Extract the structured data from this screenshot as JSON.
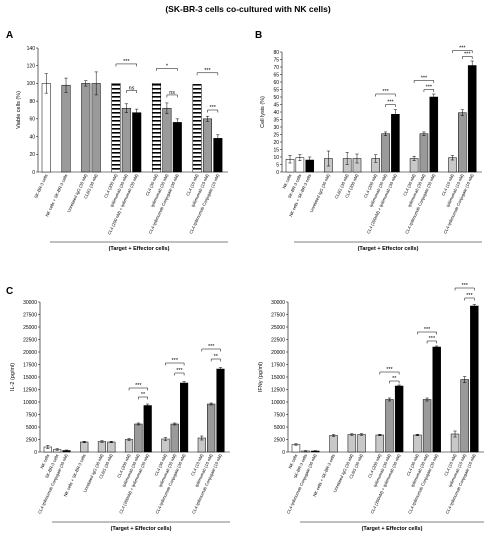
{
  "figure_title": "(SK-BR-3 cells co-cultured with NK cells)",
  "colors": {
    "white": "#ffffff",
    "light_gray": "#c8c8c8",
    "gray": "#9a9a9a",
    "dark_gray": "#7a7a7a",
    "black": "#000000"
  },
  "chart_data": [
    {
      "panel": "A",
      "type": "bar",
      "ylabel": "Viable cells (%)",
      "xlabel": "(Target + Effector cells)",
      "ylim": [
        0,
        140
      ],
      "yticks": [
        0,
        20,
        40,
        60,
        80,
        100,
        120,
        140
      ],
      "ytick_labels": [
        "0",
        "20",
        "40",
        "60",
        "80",
        "100",
        "120",
        "140"
      ],
      "groups": [
        {
          "bars": [
            {
              "label": "SK-BR-3 cells",
              "value": 100,
              "err": 11,
              "fill": "white"
            }
          ]
        },
        {
          "bars": [
            {
              "label": "NK cells + SK-BR-3 cells",
              "value": 98,
              "err": 8,
              "fill": "gray"
            }
          ]
        },
        {
          "bars": [
            {
              "label": "Unrelated IgG (30 nM)",
              "value": 100,
              "err": 3,
              "fill": "gray"
            },
            {
              "label": "CL6G (30 nM)",
              "value": 100,
              "err": 13,
              "fill": "gray"
            }
          ]
        },
        {
          "bars": [
            {
              "label": "CL4 (200 nM)",
              "value": 100,
              "err": 0,
              "fill": "stripe"
            },
            {
              "label": "Ipilimumab (30 nM)",
              "value": 72,
              "err": 5,
              "fill": "gray"
            },
            {
              "label": "CL4 (200 nM) + Ipilimumab (30 nM)",
              "value": 67,
              "err": 4,
              "fill": "black"
            }
          ]
        },
        {
          "bars": [
            {
              "label": "CL4 (30 nM)",
              "value": 100,
              "err": 0,
              "fill": "stripe"
            },
            {
              "label": "Ipilimumab (30 nM)",
              "value": 72,
              "err": 6,
              "fill": "gray"
            },
            {
              "label": "CL4-Ipilimumab Conjugate (30 nM)",
              "value": 56,
              "err": 4,
              "fill": "black"
            }
          ]
        },
        {
          "bars": [
            {
              "label": "CL4 (10 nM)",
              "value": 99,
              "err": 0,
              "fill": "stripe"
            },
            {
              "label": "Ipilimumab (10 nM)",
              "value": 60,
              "err": 3,
              "fill": "gray"
            },
            {
              "label": "CL4-Ipilimumab Conjugate (10 nM)",
              "value": 38,
              "err": 4,
              "fill": "black"
            }
          ]
        }
      ],
      "sig_brackets": [
        {
          "group": 3,
          "from": 0,
          "to": 2,
          "level": 122,
          "label": "***"
        },
        {
          "group": 3,
          "from": 1,
          "to": 2,
          "level": 92,
          "label": "ns"
        },
        {
          "group": 4,
          "from": 0,
          "to": 2,
          "level": 117,
          "label": "*"
        },
        {
          "group": 4,
          "from": 1,
          "to": 2,
          "level": 87,
          "label": "ns"
        },
        {
          "group": 5,
          "from": 0,
          "to": 2,
          "level": 112,
          "label": "***"
        },
        {
          "group": 5,
          "from": 1,
          "to": 2,
          "level": 70,
          "label": "***"
        }
      ]
    },
    {
      "panel": "B",
      "type": "bar",
      "ylabel": "Cell lysis (%)",
      "xlabel": "(Target + Effector cells)",
      "ylim": [
        0,
        80
      ],
      "yticks": [
        0,
        5,
        10,
        15,
        20,
        25,
        30,
        35,
        40,
        45,
        50,
        55,
        60,
        65,
        70,
        75,
        80
      ],
      "ytick_labels": [
        "0",
        "5",
        "10",
        "15",
        "20",
        "25",
        "30",
        "35",
        "40",
        "45",
        "50",
        "55",
        "60",
        "65",
        "70",
        "75",
        "80"
      ],
      "groups": [
        {
          "bars": [
            {
              "label": "NK cells",
              "value": 8.5,
              "err": 2.5,
              "fill": "white"
            },
            {
              "label": "SK-BR-3 cells",
              "value": 9.5,
              "err": 2,
              "fill": "white"
            },
            {
              "label": "NK cells + SK-BR-3 cells",
              "value": 8,
              "err": 2,
              "fill": "black"
            }
          ]
        },
        {
          "bars": [
            {
              "label": "Unrelated IgG (30 nM)",
              "value": 9,
              "err": 5,
              "fill": "light_gray"
            }
          ]
        },
        {
          "bars": [
            {
              "label": "CL6G (30 nM)",
              "value": 9,
              "err": 4,
              "fill": "light_gray"
            },
            {
              "label": "CL4 (200 nM)",
              "value": 9,
              "err": 3,
              "fill": "light_gray"
            }
          ]
        },
        {
          "bars": [
            {
              "label": "CL4 (200 nM)",
              "value": 9,
              "err": 2.5,
              "fill": "light_gray"
            },
            {
              "label": "Ipilimumab (30 nM)",
              "value": 25.5,
              "err": 1.2,
              "fill": "gray"
            },
            {
              "label": "CL4 (200nM) + Ipilimumab (30 nM)",
              "value": 38.5,
              "err": 3,
              "fill": "black"
            }
          ]
        },
        {
          "bars": [
            {
              "label": "CL4 (30 nM)",
              "value": 9,
              "err": 1.5,
              "fill": "light_gray"
            },
            {
              "label": "Ipilimumab (30 nM)",
              "value": 25.5,
              "err": 1.2,
              "fill": "gray"
            },
            {
              "label": "CL4-Ipilimumab Conjugate (30 nM)",
              "value": 50,
              "err": 2,
              "fill": "black"
            }
          ]
        },
        {
          "bars": [
            {
              "label": "CL4 (10 nM)",
              "value": 9.5,
              "err": 1.5,
              "fill": "light_gray"
            },
            {
              "label": "Ipilimumab (10 nM)",
              "value": 39.5,
              "err": 2,
              "fill": "gray"
            },
            {
              "label": "CL4-Ipilimumab Conjugate (10 nM)",
              "value": 71,
              "err": 3,
              "fill": "black"
            }
          ]
        }
      ],
      "sig_brackets": [
        {
          "group": 3,
          "from": 0,
          "to": 2,
          "level": 52,
          "label": "***"
        },
        {
          "group": 3,
          "from": 1,
          "to": 2,
          "level": 45,
          "label": "***"
        },
        {
          "group": 4,
          "from": 0,
          "to": 2,
          "level": 61,
          "label": "***"
        },
        {
          "group": 4,
          "from": 1,
          "to": 2,
          "level": 55,
          "label": "***"
        },
        {
          "group": 5,
          "from": 0,
          "to": 2,
          "level": 81,
          "label": "***"
        },
        {
          "group": 5,
          "from": 1,
          "to": 2,
          "level": 77,
          "label": "***"
        }
      ]
    },
    {
      "panel": "C",
      "type": "bar",
      "ylabel": "IL-2 (pg/ml)",
      "xlabel": "(Target + Effector cells)",
      "ylim": [
        0,
        30000
      ],
      "yticks": [
        0,
        2500,
        5000,
        7500,
        10000,
        12500,
        15000,
        17500,
        20000,
        22500,
        25000,
        27500,
        30000
      ],
      "ytick_labels": [
        "0",
        "2500",
        "5000",
        "7500",
        "10000",
        "12500",
        "15000",
        "17500",
        "20000",
        "22500",
        "25000",
        "27500",
        "30000"
      ],
      "groups": [
        {
          "bars": [
            {
              "label": "NK cells",
              "value": 1000,
              "err": 300,
              "fill": "white"
            },
            {
              "label": "SK-BR-3 cells",
              "value": 500,
              "err": 150,
              "fill": "white"
            },
            {
              "label": "CL4-Ipilimumab Conjugate (30 nM)",
              "value": 300,
              "err": 100,
              "fill": "black"
            }
          ]
        },
        {
          "bars": [
            {
              "label": "NK cells + SK-BR-3 cells",
              "value": 2000,
              "err": 150,
              "fill": "light_gray"
            }
          ]
        },
        {
          "bars": [
            {
              "label": "Unrelated IgG (30 nM)",
              "value": 2100,
              "err": 150,
              "fill": "light_gray"
            },
            {
              "label": "CL6G (30 nM)",
              "value": 2000,
              "err": 150,
              "fill": "light_gray"
            }
          ]
        },
        {
          "bars": [
            {
              "label": "CL4 (200 nM)",
              "value": 2500,
              "err": 200,
              "fill": "light_gray"
            },
            {
              "label": "Ipilimumab (30 nM)",
              "value": 5600,
              "err": 200,
              "fill": "gray"
            },
            {
              "label": "CL4 (200nM) + Ipilimumab (30 nM)",
              "value": 9300,
              "err": 300,
              "fill": "black"
            }
          ]
        },
        {
          "bars": [
            {
              "label": "CL4 (30 nM)",
              "value": 2600,
              "err": 300,
              "fill": "light_gray"
            },
            {
              "label": "Ipilimumab (30 nM)",
              "value": 5600,
              "err": 200,
              "fill": "gray"
            },
            {
              "label": "CL4-Ipilimumab Conjugate (30 nM)",
              "value": 13800,
              "err": 300,
              "fill": "black"
            }
          ]
        },
        {
          "bars": [
            {
              "label": "CL4 (10 nM)",
              "value": 2800,
              "err": 400,
              "fill": "light_gray"
            },
            {
              "label": "Ipilimumab (10 nM)",
              "value": 9600,
              "err": 200,
              "fill": "gray"
            },
            {
              "label": "CL4-Ipilimumab Conjugate (10 nM)",
              "value": 16600,
              "err": 300,
              "fill": "black"
            }
          ]
        }
      ],
      "sig_brackets": [
        {
          "group": 3,
          "from": 0,
          "to": 2,
          "level": 12800,
          "label": "***"
        },
        {
          "group": 3,
          "from": 1,
          "to": 2,
          "level": 11000,
          "label": "**"
        },
        {
          "group": 4,
          "from": 0,
          "to": 2,
          "level": 17800,
          "label": "***"
        },
        {
          "group": 4,
          "from": 1,
          "to": 2,
          "level": 15800,
          "label": "***"
        },
        {
          "group": 5,
          "from": 0,
          "to": 2,
          "level": 20600,
          "label": "***"
        },
        {
          "group": 5,
          "from": 1,
          "to": 2,
          "level": 18600,
          "label": "**"
        }
      ]
    },
    {
      "panel": "",
      "type": "bar",
      "ylabel": "IFNγ (pg/ml)",
      "xlabel": "(Target + Effector cells)",
      "ylim": [
        0,
        30000
      ],
      "yticks": [
        0,
        2500,
        5000,
        7500,
        10000,
        12500,
        15000,
        17500,
        20000,
        22500,
        25000,
        27500,
        30000
      ],
      "ytick_labels": [
        "0",
        "2500",
        "5000",
        "7500",
        "10000",
        "12500",
        "15000",
        "17500",
        "20000",
        "22500",
        "25000",
        "27500",
        "30000"
      ],
      "groups": [
        {
          "bars": [
            {
              "label": "NK cells",
              "value": 1500,
              "err": 150,
              "fill": "white"
            },
            {
              "label": "SK-BR-3 cells",
              "value": 200,
              "err": 80,
              "fill": "white"
            },
            {
              "label": "CL4-Ipilimumab Conjugate (30 nM)",
              "value": 200,
              "err": 80,
              "fill": "black"
            }
          ]
        },
        {
          "bars": [
            {
              "label": "NK cells + SK-BR-3 cells",
              "value": 3300,
              "err": 200,
              "fill": "light_gray"
            }
          ]
        },
        {
          "bars": [
            {
              "label": "Unrelated IgG (30 nM)",
              "value": 3500,
              "err": 150,
              "fill": "light_gray"
            },
            {
              "label": "CL6G (30 nM)",
              "value": 3500,
              "err": 150,
              "fill": "light_gray"
            }
          ]
        },
        {
          "bars": [
            {
              "label": "CL4 (200 nM)",
              "value": 3400,
              "err": 150,
              "fill": "light_gray"
            },
            {
              "label": "Ipilimumab (30 nM)",
              "value": 10500,
              "err": 300,
              "fill": "gray"
            },
            {
              "label": "CL4 (200nM) + Ipilimumab (30 nM)",
              "value": 13200,
              "err": 200,
              "fill": "black"
            }
          ]
        },
        {
          "bars": [
            {
              "label": "CL4 (30 nM)",
              "value": 3400,
              "err": 150,
              "fill": "light_gray"
            },
            {
              "label": "Ipilimumab (30 nM)",
              "value": 10500,
              "err": 300,
              "fill": "gray"
            },
            {
              "label": "CL4-Ipilimumab Conjugate (30 nM)",
              "value": 21000,
              "err": 200,
              "fill": "black"
            }
          ]
        },
        {
          "bars": [
            {
              "label": "CL4 (10 nM)",
              "value": 3600,
              "err": 600,
              "fill": "light_gray"
            },
            {
              "label": "Ipilimumab (10 nM)",
              "value": 14500,
              "err": 600,
              "fill": "gray"
            },
            {
              "label": "CL4-Ipilimumab Conjugate (10 nM)",
              "value": 29200,
              "err": 300,
              "fill": "black"
            }
          ]
        }
      ],
      "sig_brackets": [
        {
          "group": 3,
          "from": 0,
          "to": 2,
          "level": 16000,
          "label": "***"
        },
        {
          "group": 3,
          "from": 1,
          "to": 2,
          "level": 14200,
          "label": "**"
        },
        {
          "group": 4,
          "from": 0,
          "to": 2,
          "level": 24000,
          "label": "***"
        },
        {
          "group": 4,
          "from": 1,
          "to": 2,
          "level": 22200,
          "label": "***"
        },
        {
          "group": 5,
          "from": 0,
          "to": 2,
          "level": 32800,
          "label": "***"
        },
        {
          "group": 5,
          "from": 1,
          "to": 2,
          "level": 30800,
          "label": "***"
        }
      ]
    }
  ]
}
